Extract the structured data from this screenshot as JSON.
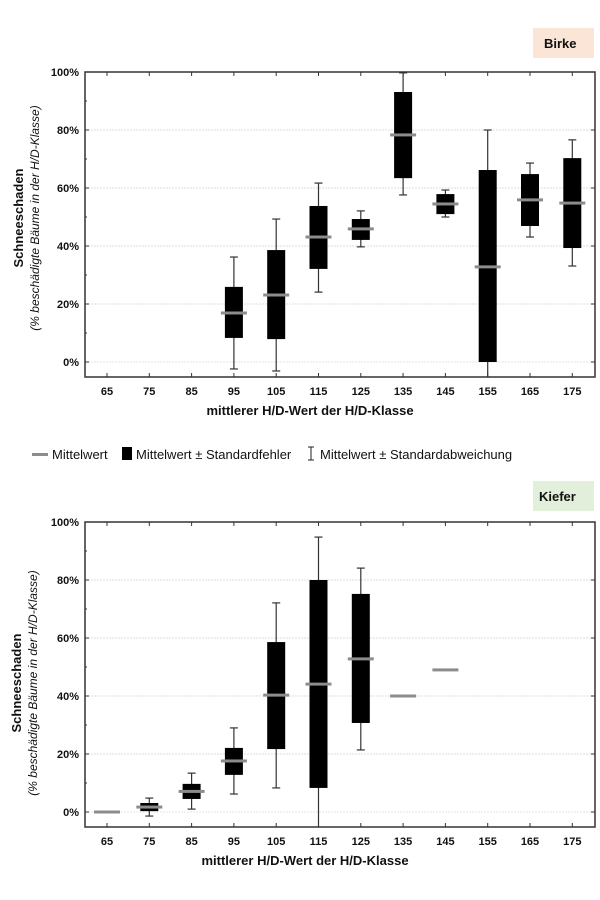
{
  "legend": {
    "mean": "Mittelwert",
    "se": "Mittelwert ± Standardfehler",
    "sd": "Mittelwert ± Standardabweichung"
  },
  "colors": {
    "box": "#000000",
    "mean": "#8c8c8c",
    "birke_bg": "#fbe5d6",
    "kiefer_bg": "#e2efda",
    "grid": "#dddddd"
  },
  "chart_data": [
    {
      "type": "boxplot",
      "title": "Birke",
      "xlabel": "mittlerer H/D-Wert der H/D-Klasse",
      "ylabel": "Schneeschaden",
      "ylabel_sub": "(% beschädigte Bäume in der H/D-Klasse)",
      "ylim": [
        -5,
        100
      ],
      "yticks": [
        "0%",
        "20%",
        "40%",
        "60%",
        "80%",
        "100%"
      ],
      "ytick_values": [
        0,
        20,
        40,
        60,
        80,
        100
      ],
      "categories": [
        "65",
        "75",
        "85",
        "95",
        "105",
        "115",
        "125",
        "135",
        "145",
        "155",
        "165",
        "175"
      ],
      "grid": true,
      "series": [
        {
          "x": "95",
          "mean": 16.9,
          "se_low": 8.3,
          "se_high": 25.9,
          "sd_low": -2.4,
          "sd_high": 36.2
        },
        {
          "x": "105",
          "mean": 23.1,
          "se_low": 7.9,
          "se_high": 38.6,
          "sd_low": -3.1,
          "sd_high": 49.3
        },
        {
          "x": "115",
          "mean": 43.1,
          "se_low": 32.1,
          "se_high": 53.8,
          "sd_low": 24.1,
          "sd_high": 61.7
        },
        {
          "x": "125",
          "mean": 45.9,
          "se_low": 42.1,
          "se_high": 49.3,
          "sd_low": 39.7,
          "sd_high": 52.1
        },
        {
          "x": "135",
          "mean": 78.3,
          "se_low": 63.4,
          "se_high": 93.1,
          "sd_low": 57.6,
          "sd_high": 99.7
        },
        {
          "x": "145",
          "mean": 54.5,
          "se_low": 51.0,
          "se_high": 57.9,
          "sd_low": 50.0,
          "sd_high": 59.3
        },
        {
          "x": "155",
          "mean": 32.8,
          "se_low": 0.0,
          "se_high": 66.2,
          "sd_low": -5.0,
          "sd_high": 80.0
        },
        {
          "x": "165",
          "mean": 55.9,
          "se_low": 46.9,
          "se_high": 64.8,
          "sd_low": 43.1,
          "sd_high": 68.6
        },
        {
          "x": "175",
          "mean": 54.8,
          "se_low": 39.3,
          "se_high": 70.3,
          "sd_low": 33.1,
          "sd_high": 76.6
        }
      ]
    },
    {
      "type": "boxplot",
      "title": "Kiefer",
      "xlabel": "mittlerer H/D-Wert der H/D-Klasse",
      "ylabel": "Schneeschaden",
      "ylabel_sub": "(% beschädigte Bäume in der H/D-Klasse)",
      "ylim": [
        -5,
        100
      ],
      "yticks": [
        "0%",
        "20%",
        "40%",
        "60%",
        "80%",
        "100%"
      ],
      "ytick_values": [
        0,
        20,
        40,
        60,
        80,
        100
      ],
      "categories": [
        "65",
        "75",
        "85",
        "95",
        "105",
        "115",
        "125",
        "135",
        "145",
        "155",
        "165",
        "175"
      ],
      "grid": true,
      "series": [
        {
          "x": "65",
          "mean": 0.0
        },
        {
          "x": "75",
          "mean": 1.7,
          "se_low": 0.3,
          "se_high": 3.1,
          "sd_low": -1.4,
          "sd_high": 4.8
        },
        {
          "x": "85",
          "mean": 7.1,
          "se_low": 4.5,
          "se_high": 9.7,
          "sd_low": 1.0,
          "sd_high": 13.4
        },
        {
          "x": "95",
          "mean": 17.6,
          "se_low": 12.8,
          "se_high": 22.1,
          "sd_low": 6.2,
          "sd_high": 29.0
        },
        {
          "x": "105",
          "mean": 40.3,
          "se_low": 21.7,
          "se_high": 58.6,
          "sd_low": 8.3,
          "sd_high": 72.1
        },
        {
          "x": "115",
          "mean": 44.1,
          "se_low": 8.3,
          "se_high": 80.0,
          "sd_low": -5.0,
          "sd_high": 94.8
        },
        {
          "x": "125",
          "mean": 52.8,
          "se_low": 30.7,
          "se_high": 75.2,
          "sd_low": 21.4,
          "sd_high": 84.1
        },
        {
          "x": "135",
          "mean": 40.0
        },
        {
          "x": "145",
          "mean": 49.0
        }
      ]
    }
  ]
}
